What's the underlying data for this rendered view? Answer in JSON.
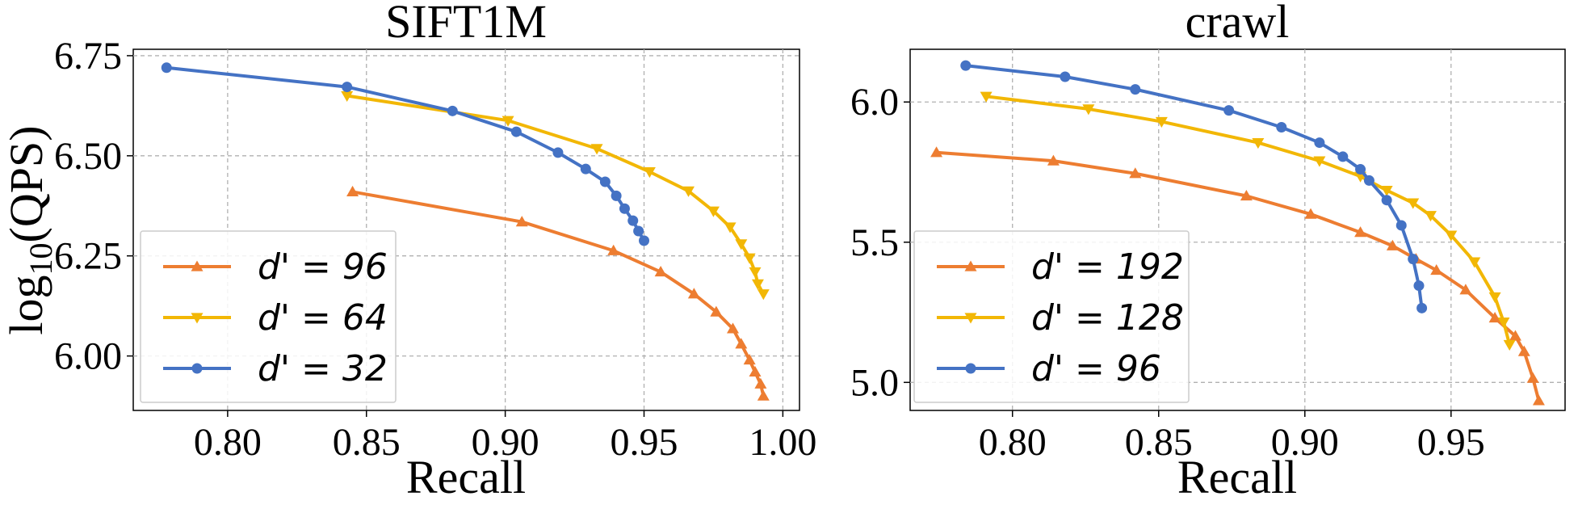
{
  "chart_data": [
    {
      "type": "line",
      "title": "SIFT1M",
      "xlabel": "Recall",
      "ylabel": "log10(QPS)",
      "xlim": [
        0.766,
        1.006
      ],
      "ylim": [
        5.864,
        6.766
      ],
      "xticks": [
        0.8,
        0.85,
        0.9,
        0.95,
        1.0
      ],
      "xtick_labels": [
        "0.80",
        "0.85",
        "0.90",
        "0.95",
        "1.00"
      ],
      "yticks": [
        6.0,
        6.25,
        6.5,
        6.75
      ],
      "ytick_labels": [
        "6.00",
        "6.25",
        "6.50",
        "6.75"
      ],
      "grid": true,
      "legend_position": "lower-left",
      "series": [
        {
          "name": "d′ = 96",
          "legend_label": "d' = 96",
          "color": "#ED7D31",
          "marker": "triangle-up",
          "points": [
            [
              0.845,
              6.41
            ],
            [
              0.906,
              6.335
            ],
            [
              0.939,
              6.263
            ],
            [
              0.956,
              6.21
            ],
            [
              0.968,
              6.155
            ],
            [
              0.976,
              6.11
            ],
            [
              0.982,
              6.068
            ],
            [
              0.985,
              6.03
            ],
            [
              0.988,
              5.99
            ],
            [
              0.99,
              5.96
            ],
            [
              0.992,
              5.93
            ],
            [
              0.993,
              5.9
            ]
          ]
        },
        {
          "name": "d′ = 64",
          "legend_label": "d' = 64",
          "color": "#F2B705",
          "marker": "triangle-down",
          "points": [
            [
              0.843,
              6.65
            ],
            [
              0.901,
              6.588
            ],
            [
              0.933,
              6.518
            ],
            [
              0.952,
              6.46
            ],
            [
              0.966,
              6.412
            ],
            [
              0.975,
              6.362
            ],
            [
              0.981,
              6.322
            ],
            [
              0.985,
              6.28
            ],
            [
              0.988,
              6.245
            ],
            [
              0.99,
              6.21
            ],
            [
              0.991,
              6.18
            ],
            [
              0.993,
              6.155
            ]
          ]
        },
        {
          "name": "d′ = 32",
          "legend_label": "d' = 32",
          "color": "#4472C4",
          "marker": "circle",
          "points": [
            [
              0.778,
              6.72
            ],
            [
              0.843,
              6.672
            ],
            [
              0.881,
              6.612
            ],
            [
              0.904,
              6.56
            ],
            [
              0.919,
              6.508
            ],
            [
              0.929,
              6.467
            ],
            [
              0.936,
              6.435
            ],
            [
              0.94,
              6.4
            ],
            [
              0.943,
              6.368
            ],
            [
              0.946,
              6.338
            ],
            [
              0.948,
              6.312
            ],
            [
              0.95,
              6.288
            ]
          ]
        }
      ]
    },
    {
      "type": "line",
      "title": "crawl",
      "xlabel": "Recall",
      "ylabel": "",
      "xlim": [
        0.765,
        0.989
      ],
      "ylim": [
        4.9,
        6.188
      ],
      "xticks": [
        0.8,
        0.85,
        0.9,
        0.95
      ],
      "xtick_labels": [
        "0.80",
        "0.85",
        "0.90",
        "0.95"
      ],
      "yticks": [
        5.0,
        5.5,
        6.0
      ],
      "ytick_labels": [
        "5.0",
        "5.5",
        "6.0"
      ],
      "grid": true,
      "legend_position": "lower-left",
      "series": [
        {
          "name": "d′ = 192",
          "legend_label": "d' = 192",
          "color": "#ED7D31",
          "marker": "triangle-up",
          "points": [
            [
              0.774,
              5.82
            ],
            [
              0.814,
              5.79
            ],
            [
              0.842,
              5.745
            ],
            [
              0.88,
              5.665
            ],
            [
              0.902,
              5.6
            ],
            [
              0.919,
              5.535
            ],
            [
              0.93,
              5.487
            ],
            [
              0.938,
              5.44
            ],
            [
              0.945,
              5.4
            ],
            [
              0.955,
              5.33
            ],
            [
              0.965,
              5.23
            ],
            [
              0.972,
              5.165
            ],
            [
              0.975,
              5.11
            ],
            [
              0.978,
              5.015
            ],
            [
              0.98,
              4.935
            ]
          ]
        },
        {
          "name": "d′ = 128",
          "legend_label": "d' = 128",
          "color": "#F2B705",
          "marker": "triangle-down",
          "points": [
            [
              0.791,
              6.02
            ],
            [
              0.826,
              5.975
            ],
            [
              0.851,
              5.93
            ],
            [
              0.884,
              5.855
            ],
            [
              0.905,
              5.79
            ],
            [
              0.919,
              5.735
            ],
            [
              0.928,
              5.685
            ],
            [
              0.937,
              5.64
            ],
            [
              0.943,
              5.595
            ],
            [
              0.95,
              5.525
            ],
            [
              0.958,
              5.43
            ],
            [
              0.965,
              5.305
            ],
            [
              0.968,
              5.215
            ],
            [
              0.97,
              5.135
            ]
          ]
        },
        {
          "name": "d′ = 96",
          "legend_label": "d' = 96",
          "color": "#4472C4",
          "marker": "circle",
          "points": [
            [
              0.784,
              6.13
            ],
            [
              0.818,
              6.09
            ],
            [
              0.842,
              6.045
            ],
            [
              0.874,
              5.97
            ],
            [
              0.892,
              5.91
            ],
            [
              0.905,
              5.855
            ],
            [
              0.913,
              5.805
            ],
            [
              0.919,
              5.76
            ],
            [
              0.922,
              5.72
            ],
            [
              0.928,
              5.65
            ],
            [
              0.933,
              5.56
            ],
            [
              0.937,
              5.44
            ],
            [
              0.939,
              5.345
            ],
            [
              0.94,
              5.265
            ]
          ]
        }
      ]
    }
  ]
}
